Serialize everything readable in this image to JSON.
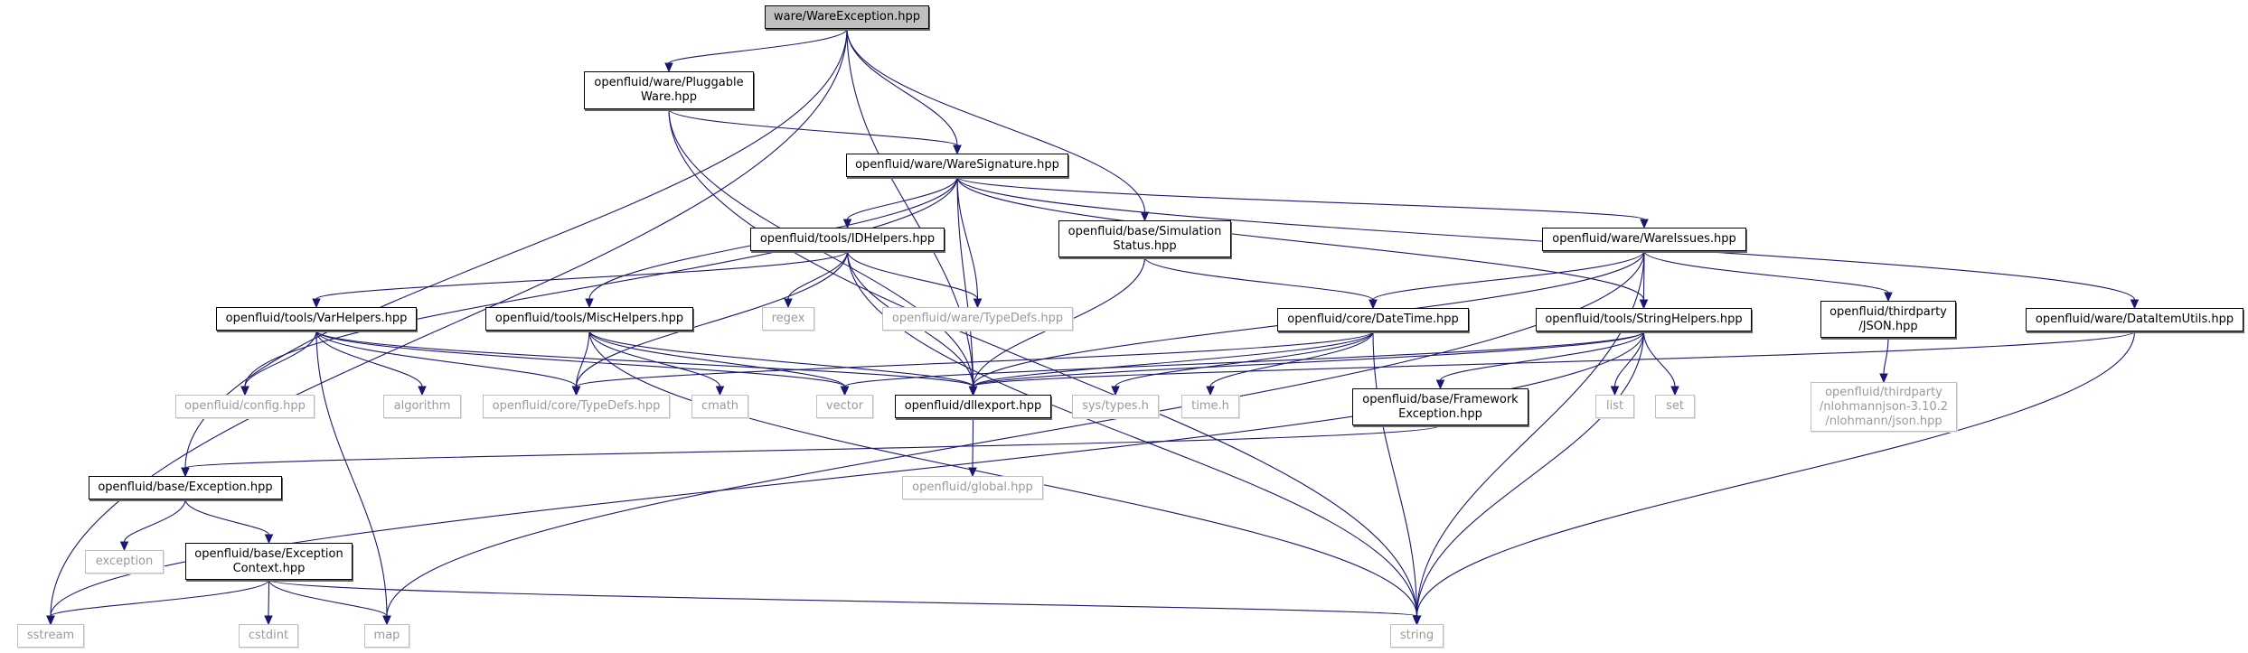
{
  "colors": {
    "edge": "#191970",
    "root_fill": "#bfbfbf",
    "external_border": "#bfbfbf",
    "node_border": "#000000"
  },
  "nodes": [
    {
      "id": "root",
      "label": "ware/WareException.hpp",
      "kind": "root"
    },
    {
      "id": "pluggable",
      "label": "openfluid/ware/Pluggable\nWare.hpp",
      "kind": "documented"
    },
    {
      "id": "signature",
      "label": "openfluid/ware/WareSignature.hpp",
      "kind": "documented"
    },
    {
      "id": "idhelpers",
      "label": "openfluid/tools/IDHelpers.hpp",
      "kind": "documented"
    },
    {
      "id": "simstatus",
      "label": "openfluid/base/Simulation\nStatus.hpp",
      "kind": "documented"
    },
    {
      "id": "wareissues",
      "label": "openfluid/ware/WareIssues.hpp",
      "kind": "documented"
    },
    {
      "id": "varhelpers",
      "label": "openfluid/tools/VarHelpers.hpp",
      "kind": "documented"
    },
    {
      "id": "mischelpers",
      "label": "openfluid/tools/MiscHelpers.hpp",
      "kind": "documented"
    },
    {
      "id": "regex",
      "label": "regex",
      "kind": "external"
    },
    {
      "id": "waretypedefs",
      "label": "openfluid/ware/TypeDefs.hpp",
      "kind": "external"
    },
    {
      "id": "datetime",
      "label": "openfluid/core/DateTime.hpp",
      "kind": "documented"
    },
    {
      "id": "stringhelpers",
      "label": "openfluid/tools/StringHelpers.hpp",
      "kind": "documented"
    },
    {
      "id": "json",
      "label": "openfluid/thirdparty\n/JSON.hpp",
      "kind": "documented"
    },
    {
      "id": "dataitemutils",
      "label": "openfluid/ware/DataItemUtils.hpp",
      "kind": "documented"
    },
    {
      "id": "config",
      "label": "openfluid/config.hpp",
      "kind": "external"
    },
    {
      "id": "algorithm",
      "label": "algorithm",
      "kind": "external"
    },
    {
      "id": "coretypedefs",
      "label": "openfluid/core/TypeDefs.hpp",
      "kind": "external"
    },
    {
      "id": "cmath",
      "label": "cmath",
      "kind": "external"
    },
    {
      "id": "vector",
      "label": "vector",
      "kind": "external"
    },
    {
      "id": "dllexport",
      "label": "openfluid/dllexport.hpp",
      "kind": "documented"
    },
    {
      "id": "systypes",
      "label": "sys/types.h",
      "kind": "external"
    },
    {
      "id": "timeh",
      "label": "time.h",
      "kind": "external"
    },
    {
      "id": "frameworkexc",
      "label": "openfluid/base/Framework\nException.hpp",
      "kind": "documented"
    },
    {
      "id": "list",
      "label": "list",
      "kind": "external"
    },
    {
      "id": "set",
      "label": "set",
      "kind": "external"
    },
    {
      "id": "nlohmann",
      "label": "openfluid/thirdparty\n/nlohmannjson-3.10.2\n/nlohmann/json.hpp",
      "kind": "external"
    },
    {
      "id": "global",
      "label": "openfluid/global.hpp",
      "kind": "external"
    },
    {
      "id": "exception",
      "label": "openfluid/base/Exception.hpp",
      "kind": "documented"
    },
    {
      "id": "stdexception",
      "label": "exception",
      "kind": "external"
    },
    {
      "id": "exccontext",
      "label": "openfluid/base/Exception\nContext.hpp",
      "kind": "documented"
    },
    {
      "id": "sstream",
      "label": "sstream",
      "kind": "external"
    },
    {
      "id": "cstdint",
      "label": "cstdint",
      "kind": "external"
    },
    {
      "id": "map",
      "label": "map",
      "kind": "external"
    },
    {
      "id": "string",
      "label": "string",
      "kind": "external"
    }
  ],
  "edges": [
    [
      "root",
      "sstream"
    ],
    [
      "root",
      "exception"
    ],
    [
      "root",
      "pluggable"
    ],
    [
      "root",
      "signature"
    ],
    [
      "root",
      "simstatus"
    ],
    [
      "root",
      "dllexport"
    ],
    [
      "pluggable",
      "signature"
    ],
    [
      "pluggable",
      "dllexport"
    ],
    [
      "pluggable",
      "string"
    ],
    [
      "signature",
      "config"
    ],
    [
      "signature",
      "mischelpers"
    ],
    [
      "signature",
      "idhelpers"
    ],
    [
      "signature",
      "waretypedefs"
    ],
    [
      "signature",
      "dllexport"
    ],
    [
      "signature",
      "stringhelpers"
    ],
    [
      "signature",
      "wareissues"
    ],
    [
      "signature",
      "dataitemutils"
    ],
    [
      "idhelpers",
      "varhelpers"
    ],
    [
      "idhelpers",
      "coretypedefs"
    ],
    [
      "idhelpers",
      "regex"
    ],
    [
      "idhelpers",
      "waretypedefs"
    ],
    [
      "idhelpers",
      "dllexport"
    ],
    [
      "idhelpers",
      "string"
    ],
    [
      "simstatus",
      "datetime"
    ],
    [
      "simstatus",
      "dllexport"
    ],
    [
      "wareissues",
      "datetime"
    ],
    [
      "wareissues",
      "stringhelpers"
    ],
    [
      "wareissues",
      "json"
    ],
    [
      "wareissues",
      "dllexport"
    ],
    [
      "wareissues",
      "map"
    ],
    [
      "wareissues",
      "string"
    ],
    [
      "varhelpers",
      "config"
    ],
    [
      "varhelpers",
      "algorithm"
    ],
    [
      "varhelpers",
      "coretypedefs"
    ],
    [
      "varhelpers",
      "map"
    ],
    [
      "varhelpers",
      "vector"
    ],
    [
      "varhelpers",
      "dllexport"
    ],
    [
      "mischelpers",
      "coretypedefs"
    ],
    [
      "mischelpers",
      "cmath"
    ],
    [
      "mischelpers",
      "vector"
    ],
    [
      "mischelpers",
      "dllexport"
    ],
    [
      "mischelpers",
      "string"
    ],
    [
      "datetime",
      "coretypedefs"
    ],
    [
      "datetime",
      "dllexport"
    ],
    [
      "datetime",
      "systypes"
    ],
    [
      "datetime",
      "timeh"
    ],
    [
      "datetime",
      "string"
    ],
    [
      "stringhelpers",
      "dllexport"
    ],
    [
      "stringhelpers",
      "vector"
    ],
    [
      "stringhelpers",
      "sstream"
    ],
    [
      "stringhelpers",
      "frameworkexc"
    ],
    [
      "stringhelpers",
      "list"
    ],
    [
      "stringhelpers",
      "set"
    ],
    [
      "stringhelpers",
      "string"
    ],
    [
      "json",
      "nlohmann"
    ],
    [
      "dataitemutils",
      "dllexport"
    ],
    [
      "dataitemutils",
      "string"
    ],
    [
      "dllexport",
      "global"
    ],
    [
      "frameworkexc",
      "exception"
    ],
    [
      "exception",
      "stdexception"
    ],
    [
      "exception",
      "exccontext"
    ],
    [
      "exccontext",
      "sstream"
    ],
    [
      "exccontext",
      "cstdint"
    ],
    [
      "exccontext",
      "map"
    ],
    [
      "exccontext",
      "string"
    ]
  ]
}
